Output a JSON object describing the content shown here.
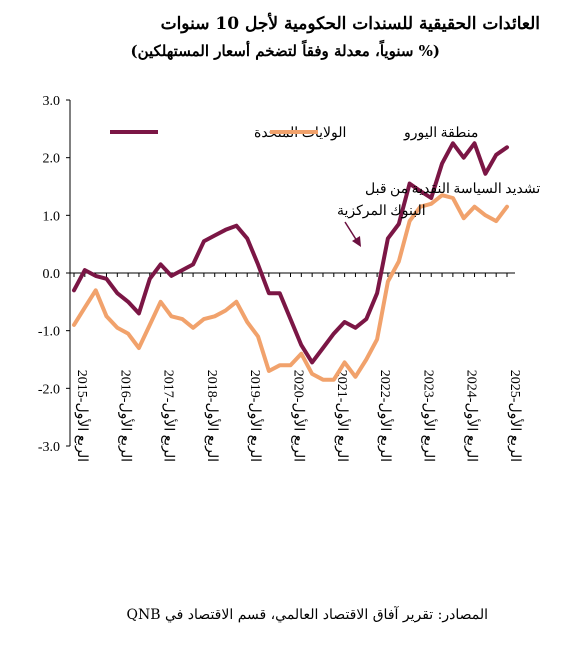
{
  "chart_data": {
    "type": "line",
    "title": "العائدات الحقيقية للسندات الحكومية لأجل 10 سنوات",
    "subtitle": "(% سنوياً، معدلة وفقاً لتضخم أسعار المستهلكين)",
    "source": "المصادر: تقرير آفاق الاقتصاد العالمي، قسم الاقتصاد في QNB",
    "annotation": [
      "تشديد السياسة النقدية من قبل",
      "البنوك المركزية"
    ],
    "ylim": [
      -3.0,
      3.0
    ],
    "yticks": [
      "3.0",
      "2.0",
      "1.0",
      "0.0",
      "-1.0",
      "-2.0",
      "-3.0"
    ],
    "xtick_labels": [
      "الربع الأول-2015",
      "الربع الأول-2016",
      "الربع الأول-2017",
      "الربع الأول-2018",
      "الربع الأول-2019",
      "الربع الأول-2020",
      "الربع الأول-2021",
      "الربع الأول-2022",
      "الربع الأول-2023",
      "الربع الأول-2024",
      "الربع الأول-2025"
    ],
    "legend_position": "top",
    "grid": false,
    "series": [
      {
        "name": "الولايات المتحدة",
        "color": "#7b1645",
        "values": [
          -0.3,
          0.05,
          -0.05,
          -0.1,
          -0.35,
          -0.5,
          -0.7,
          -0.1,
          0.15,
          -0.05,
          0.05,
          0.15,
          0.55,
          0.65,
          0.75,
          0.82,
          0.6,
          0.15,
          -0.35,
          -0.35,
          -0.8,
          -1.25,
          -1.55,
          -1.3,
          -1.05,
          -0.85,
          -0.95,
          -0.8,
          -0.35,
          0.6,
          0.85,
          1.55,
          1.42,
          1.3,
          1.9,
          2.25,
          2.0,
          2.25,
          1.72,
          2.05,
          2.18
        ]
      },
      {
        "name": "منطقة اليورو",
        "color": "#f1a26c",
        "values": [
          -0.9,
          -0.6,
          -0.3,
          -0.75,
          -0.95,
          -1.05,
          -1.3,
          -0.9,
          -0.5,
          -0.75,
          -0.8,
          -0.95,
          -0.8,
          -0.75,
          -0.65,
          -0.5,
          -0.85,
          -1.1,
          -1.7,
          -1.6,
          -1.6,
          -1.4,
          -1.75,
          -1.85,
          -1.85,
          -1.55,
          -1.8,
          -1.5,
          -1.15,
          -0.15,
          0.2,
          0.9,
          1.15,
          1.2,
          1.35,
          1.3,
          0.95,
          1.15,
          1.0,
          0.9,
          1.15
        ]
      }
    ]
  }
}
